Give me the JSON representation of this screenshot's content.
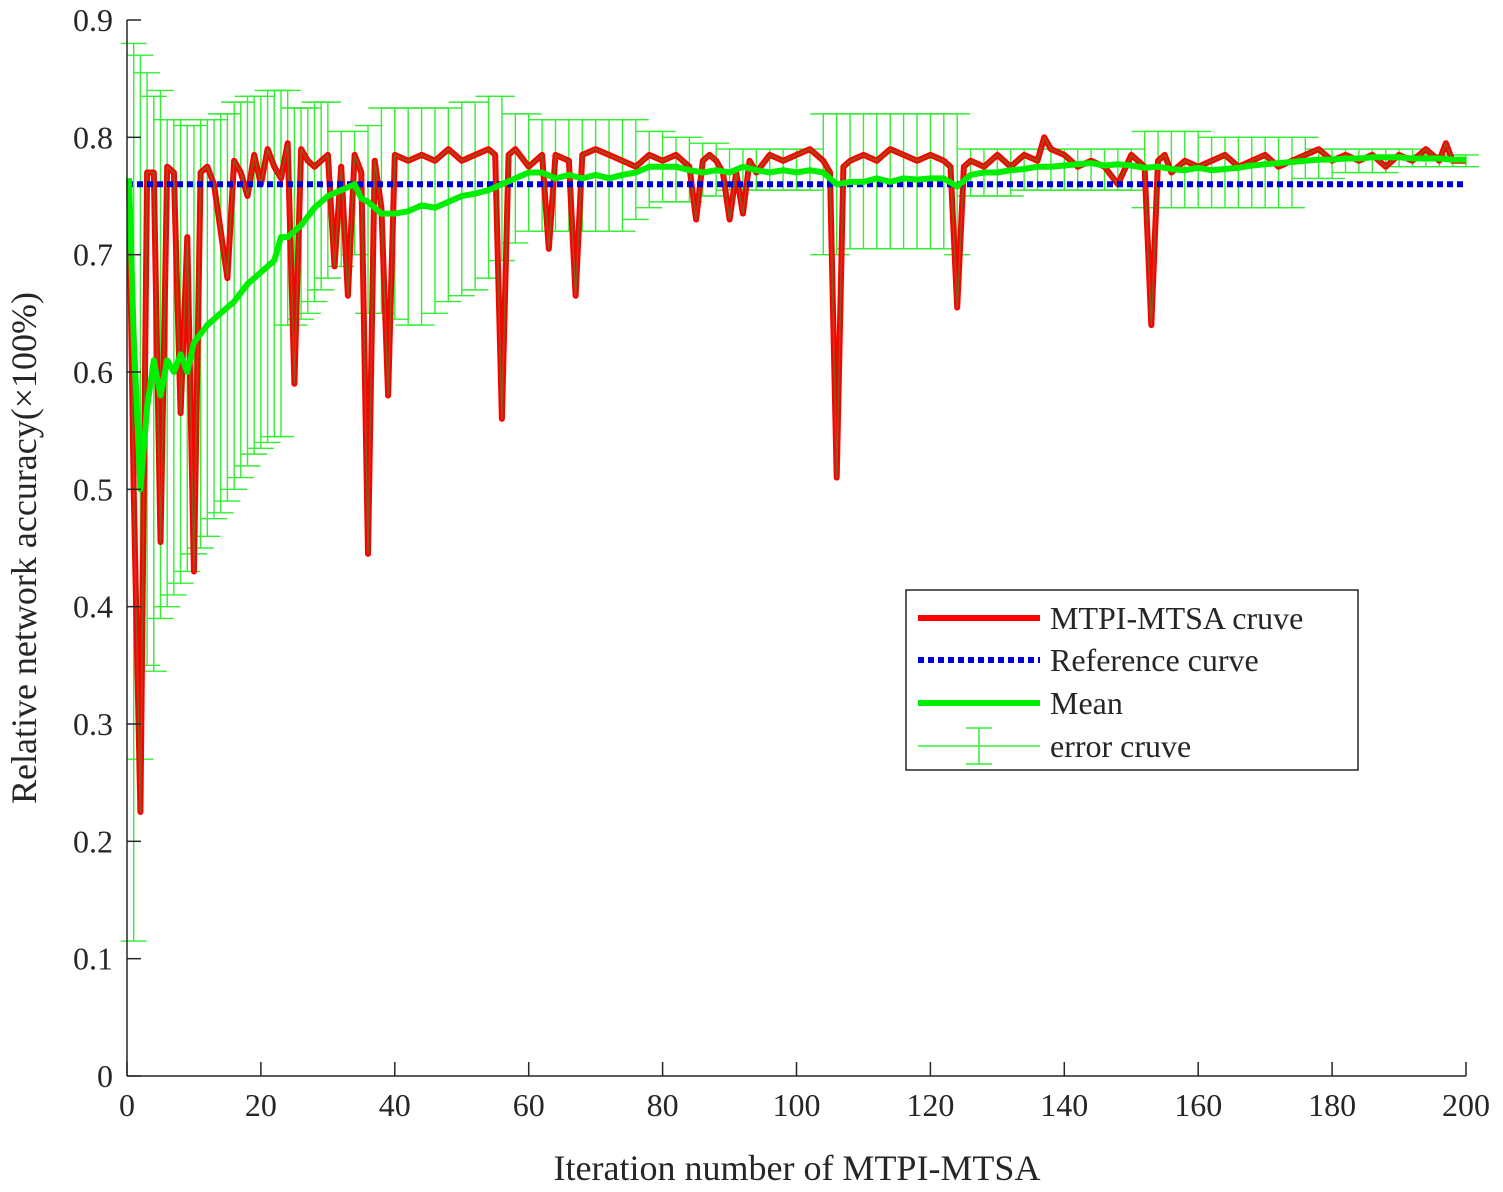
{
  "chart_data": {
    "type": "line",
    "title": "",
    "xlabel": "Iteration number of MTPI-MTSA",
    "ylabel": "Relative network accuracy(×100%)",
    "xlim": [
      0,
      200
    ],
    "ylim": [
      0,
      0.9
    ],
    "xticks": [
      0,
      20,
      40,
      60,
      80,
      100,
      120,
      140,
      160,
      180,
      200
    ],
    "yticks": [
      0,
      0.1,
      0.2,
      0.3,
      0.4,
      0.5,
      0.6,
      0.7,
      0.8,
      0.9
    ],
    "xtick_labels": [
      "0",
      "20",
      "40",
      "60",
      "80",
      "100",
      "120",
      "140",
      "160",
      "180",
      "200"
    ],
    "ytick_labels": [
      "0",
      "0.1",
      "0.2",
      "0.3",
      "0.4",
      "0.5",
      "0.6",
      "0.7",
      "0.8",
      "0.9"
    ],
    "grid": false,
    "legend_position": "center-right",
    "series": [
      {
        "name": "MTPI-MTSA cruve",
        "style": "solid",
        "color": "#ff0000",
        "x": [
          0.3,
          1,
          2,
          3,
          4,
          5,
          6,
          7,
          8,
          9,
          10,
          11,
          12,
          13,
          14,
          15,
          16,
          17,
          18,
          19,
          20,
          21,
          22,
          23,
          24,
          25,
          26,
          27,
          28,
          29,
          30,
          31,
          32,
          33,
          34,
          35,
          36,
          37,
          38,
          39,
          40,
          42,
          44,
          46,
          48,
          50,
          52,
          54,
          55,
          56,
          57,
          58,
          60,
          62,
          63,
          64,
          66,
          67,
          68,
          70,
          72,
          74,
          76,
          78,
          80,
          82,
          84,
          85,
          86,
          87,
          88,
          89,
          90,
          91,
          92,
          93,
          94,
          96,
          98,
          100,
          102,
          104,
          105,
          106,
          107,
          108,
          110,
          112,
          114,
          116,
          118,
          120,
          122,
          123,
          124,
          125,
          126,
          128,
          130,
          132,
          134,
          136,
          137,
          138,
          140,
          142,
          144,
          146,
          148,
          150,
          151,
          152,
          153,
          154,
          155,
          156,
          158,
          160,
          162,
          164,
          166,
          168,
          170,
          172,
          174,
          176,
          178,
          180,
          182,
          184,
          186,
          188,
          190,
          192,
          194,
          196,
          197,
          198,
          200
        ],
        "y": [
          0.765,
          0.5,
          0.225,
          0.77,
          0.77,
          0.455,
          0.775,
          0.77,
          0.565,
          0.715,
          0.43,
          0.77,
          0.775,
          0.76,
          0.72,
          0.68,
          0.78,
          0.77,
          0.75,
          0.785,
          0.76,
          0.79,
          0.775,
          0.765,
          0.795,
          0.59,
          0.79,
          0.78,
          0.775,
          0.78,
          0.785,
          0.69,
          0.775,
          0.665,
          0.785,
          0.77,
          0.445,
          0.78,
          0.74,
          0.58,
          0.785,
          0.78,
          0.785,
          0.78,
          0.79,
          0.78,
          0.785,
          0.79,
          0.785,
          0.56,
          0.785,
          0.79,
          0.775,
          0.785,
          0.705,
          0.785,
          0.78,
          0.665,
          0.785,
          0.79,
          0.785,
          0.78,
          0.775,
          0.785,
          0.78,
          0.785,
          0.775,
          0.73,
          0.78,
          0.785,
          0.78,
          0.77,
          0.73,
          0.77,
          0.735,
          0.78,
          0.77,
          0.785,
          0.78,
          0.785,
          0.79,
          0.78,
          0.77,
          0.51,
          0.775,
          0.78,
          0.785,
          0.78,
          0.79,
          0.785,
          0.78,
          0.785,
          0.78,
          0.775,
          0.655,
          0.775,
          0.78,
          0.775,
          0.785,
          0.775,
          0.785,
          0.78,
          0.8,
          0.79,
          0.785,
          0.775,
          0.78,
          0.775,
          0.76,
          0.785,
          0.78,
          0.775,
          0.64,
          0.78,
          0.785,
          0.77,
          0.78,
          0.775,
          0.78,
          0.785,
          0.775,
          0.78,
          0.785,
          0.775,
          0.78,
          0.785,
          0.79,
          0.78,
          0.785,
          0.78,
          0.785,
          0.775,
          0.785,
          0.78,
          0.79,
          0.78,
          0.795,
          0.78,
          0.78
        ]
      },
      {
        "name": "Reference curve",
        "style": "dotted",
        "color": "#0000dd",
        "x": [
          0,
          200
        ],
        "y": [
          0.76,
          0.76
        ]
      },
      {
        "name": "Mean",
        "style": "solid",
        "color": "#00ee00",
        "x": [
          0.3,
          1,
          2,
          3,
          4,
          5,
          6,
          7,
          8,
          9,
          10,
          12,
          14,
          16,
          18,
          20,
          22,
          23,
          24,
          26,
          28,
          30,
          32,
          34,
          35,
          36,
          38,
          40,
          42,
          44,
          46,
          48,
          50,
          52,
          54,
          56,
          58,
          60,
          62,
          64,
          66,
          68,
          70,
          72,
          74,
          76,
          78,
          80,
          82,
          84,
          86,
          88,
          90,
          92,
          94,
          96,
          98,
          100,
          102,
          104,
          106,
          108,
          110,
          112,
          114,
          116,
          118,
          120,
          122,
          124,
          126,
          128,
          130,
          132,
          134,
          136,
          138,
          140,
          142,
          144,
          146,
          148,
          150,
          152,
          154,
          156,
          158,
          160,
          162,
          164,
          166,
          168,
          170,
          172,
          174,
          176,
          178,
          180,
          182,
          184,
          186,
          188,
          190,
          192,
          194,
          196,
          198,
          200
        ],
        "y": [
          0.765,
          0.63,
          0.5,
          0.57,
          0.61,
          0.58,
          0.61,
          0.6,
          0.615,
          0.6,
          0.625,
          0.64,
          0.65,
          0.66,
          0.675,
          0.685,
          0.695,
          0.715,
          0.715,
          0.725,
          0.74,
          0.75,
          0.755,
          0.76,
          0.748,
          0.745,
          0.735,
          0.735,
          0.737,
          0.742,
          0.74,
          0.745,
          0.75,
          0.752,
          0.755,
          0.76,
          0.765,
          0.77,
          0.77,
          0.765,
          0.768,
          0.765,
          0.768,
          0.765,
          0.768,
          0.77,
          0.775,
          0.775,
          0.775,
          0.772,
          0.77,
          0.772,
          0.77,
          0.775,
          0.772,
          0.77,
          0.772,
          0.77,
          0.772,
          0.77,
          0.76,
          0.762,
          0.762,
          0.765,
          0.762,
          0.765,
          0.764,
          0.765,
          0.765,
          0.758,
          0.768,
          0.77,
          0.77,
          0.772,
          0.773,
          0.775,
          0.775,
          0.776,
          0.777,
          0.778,
          0.776,
          0.777,
          0.776,
          0.774,
          0.775,
          0.773,
          0.772,
          0.774,
          0.772,
          0.773,
          0.774,
          0.776,
          0.777,
          0.778,
          0.779,
          0.78,
          0.781,
          0.781,
          0.782,
          0.782,
          0.783,
          0.783,
          0.783,
          0.782,
          0.782,
          0.782,
          0.781,
          0.781
        ]
      },
      {
        "name": "error cruve",
        "style": "errorbar",
        "color": "#33ee33",
        "x": [
          1,
          2,
          3,
          4,
          5,
          6,
          7,
          8,
          9,
          10,
          11,
          12,
          13,
          14,
          15,
          16,
          17,
          18,
          19,
          20,
          21,
          22,
          23,
          24,
          25,
          26,
          27,
          28,
          29,
          30,
          32,
          34,
          36,
          38,
          40,
          42,
          44,
          46,
          48,
          50,
          52,
          54,
          56,
          58,
          60,
          62,
          64,
          66,
          68,
          70,
          72,
          74,
          76,
          78,
          80,
          82,
          84,
          86,
          88,
          90,
          92,
          94,
          96,
          98,
          100,
          102,
          104,
          106,
          108,
          110,
          112,
          114,
          116,
          118,
          120,
          122,
          124,
          126,
          128,
          130,
          132,
          134,
          136,
          138,
          140,
          142,
          144,
          146,
          148,
          150,
          152,
          154,
          156,
          158,
          160,
          162,
          164,
          166,
          168,
          170,
          172,
          174,
          176,
          178,
          180,
          182,
          184,
          186,
          188,
          190,
          192,
          194,
          196,
          198,
          200
        ],
        "upper": [
          0.88,
          0.87,
          0.855,
          0.835,
          0.84,
          0.815,
          0.815,
          0.815,
          0.81,
          0.81,
          0.815,
          0.815,
          0.815,
          0.82,
          0.82,
          0.83,
          0.83,
          0.835,
          0.835,
          0.835,
          0.84,
          0.84,
          0.84,
          0.84,
          0.825,
          0.825,
          0.825,
          0.83,
          0.83,
          0.83,
          0.805,
          0.805,
          0.81,
          0.825,
          0.825,
          0.825,
          0.825,
          0.825,
          0.825,
          0.83,
          0.83,
          0.835,
          0.835,
          0.82,
          0.82,
          0.815,
          0.815,
          0.815,
          0.815,
          0.815,
          0.815,
          0.815,
          0.815,
          0.805,
          0.805,
          0.8,
          0.8,
          0.795,
          0.795,
          0.79,
          0.79,
          0.79,
          0.79,
          0.79,
          0.79,
          0.79,
          0.82,
          0.82,
          0.82,
          0.82,
          0.82,
          0.82,
          0.82,
          0.82,
          0.82,
          0.82,
          0.82,
          0.79,
          0.79,
          0.79,
          0.79,
          0.79,
          0.79,
          0.79,
          0.79,
          0.79,
          0.79,
          0.79,
          0.79,
          0.79,
          0.805,
          0.805,
          0.805,
          0.805,
          0.805,
          0.8,
          0.8,
          0.8,
          0.8,
          0.8,
          0.8,
          0.8,
          0.8,
          0.79,
          0.79,
          0.79,
          0.79,
          0.79,
          0.79,
          0.79,
          0.79,
          0.785,
          0.785,
          0.785,
          0.785
        ],
        "lower": [
          0.115,
          0.27,
          0.35,
          0.345,
          0.39,
          0.4,
          0.41,
          0.42,
          0.43,
          0.445,
          0.45,
          0.46,
          0.475,
          0.48,
          0.49,
          0.5,
          0.51,
          0.52,
          0.53,
          0.535,
          0.54,
          0.545,
          0.545,
          0.64,
          0.64,
          0.645,
          0.65,
          0.66,
          0.67,
          0.68,
          0.69,
          0.7,
          0.65,
          0.65,
          0.645,
          0.64,
          0.64,
          0.65,
          0.66,
          0.665,
          0.67,
          0.68,
          0.695,
          0.71,
          0.72,
          0.72,
          0.72,
          0.72,
          0.72,
          0.72,
          0.72,
          0.72,
          0.73,
          0.74,
          0.745,
          0.745,
          0.745,
          0.75,
          0.75,
          0.755,
          0.755,
          0.755,
          0.755,
          0.755,
          0.755,
          0.755,
          0.7,
          0.7,
          0.705,
          0.705,
          0.705,
          0.705,
          0.705,
          0.705,
          0.705,
          0.705,
          0.7,
          0.75,
          0.75,
          0.75,
          0.75,
          0.755,
          0.755,
          0.755,
          0.755,
          0.755,
          0.755,
          0.755,
          0.755,
          0.755,
          0.74,
          0.74,
          0.74,
          0.74,
          0.74,
          0.74,
          0.74,
          0.74,
          0.74,
          0.74,
          0.74,
          0.74,
          0.765,
          0.765,
          0.765,
          0.77,
          0.77,
          0.77,
          0.77,
          0.775,
          0.775,
          0.775,
          0.775,
          0.775,
          0.775
        ]
      }
    ]
  }
}
